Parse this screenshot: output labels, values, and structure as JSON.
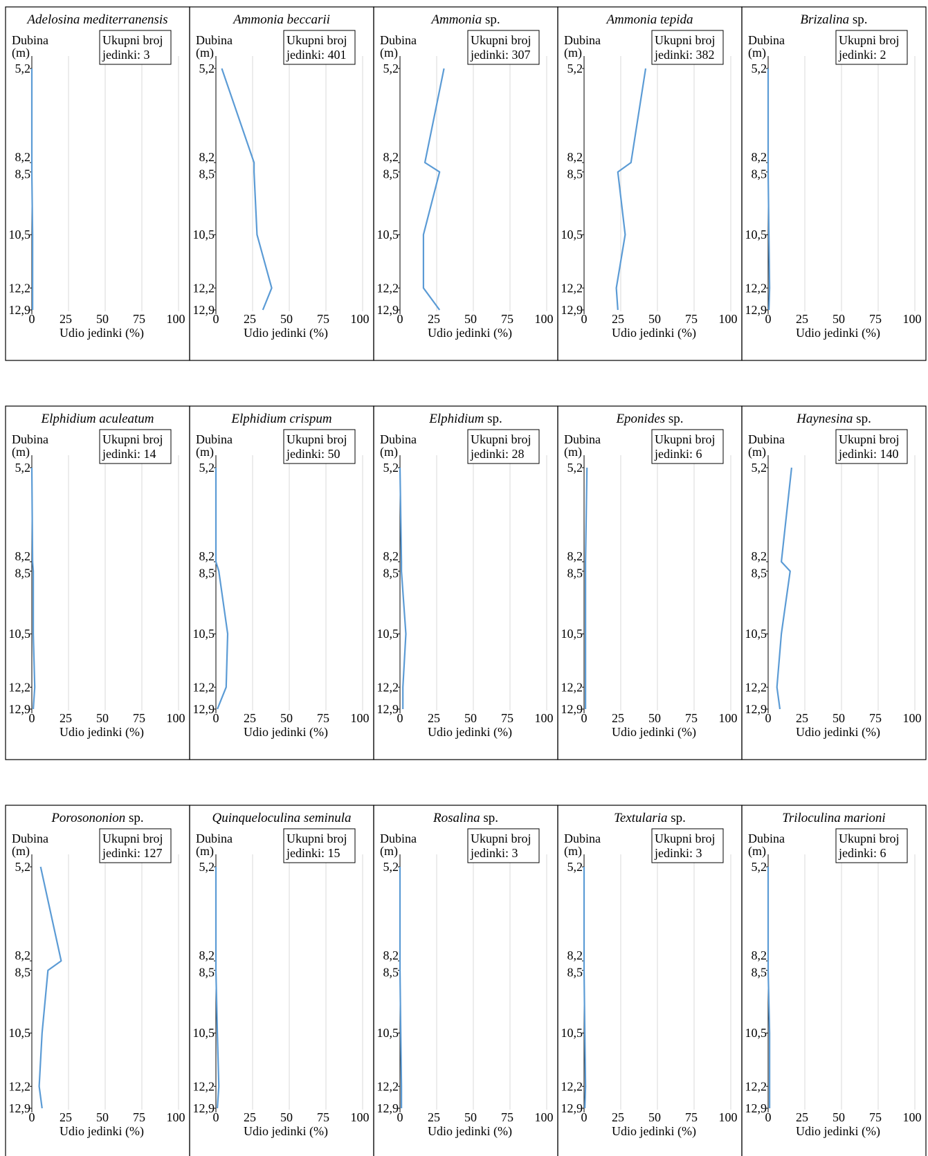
{
  "figure": {
    "y_axis_label": "Dubina",
    "y_axis_unit": "(m)",
    "x_axis_label": "Udio jedinki (%)",
    "count_label_line1": "Ukupni broj",
    "count_label_prefix": "jedinki:",
    "line_color": "#5b9bd5",
    "grid_color": "#d9d9d9",
    "frame_color": "#000000"
  },
  "chart_data": [
    {
      "type": "line",
      "title": [
        {
          "text": "Adelosina mediterranensis",
          "italic": true
        }
      ],
      "total": 3,
      "x": [
        0,
        0,
        0,
        0.5,
        0.5,
        0.5
      ],
      "y": [
        5.2,
        8.2,
        8.5,
        10.5,
        12.2,
        12.9
      ]
    },
    {
      "type": "line",
      "title": [
        {
          "text": "Ammonia beccarii",
          "italic": true
        }
      ],
      "total": 401,
      "x": [
        4,
        26,
        26,
        28,
        38,
        32
      ],
      "y": [
        5.2,
        8.2,
        8.5,
        10.5,
        12.2,
        12.9
      ]
    },
    {
      "type": "line",
      "title": [
        {
          "text": "Ammonia",
          "italic": true
        },
        {
          "text": " sp.",
          "italic": false
        }
      ],
      "total": 307,
      "x": [
        30,
        17,
        27,
        16,
        16,
        27
      ],
      "y": [
        5.2,
        8.2,
        8.5,
        10.5,
        12.2,
        12.9
      ]
    },
    {
      "type": "line",
      "title": [
        {
          "text": "Ammonia tepida",
          "italic": true
        }
      ],
      "total": 382,
      "x": [
        42,
        32,
        23,
        28,
        22,
        23
      ],
      "y": [
        5.2,
        8.2,
        8.5,
        10.5,
        12.2,
        12.9
      ]
    },
    {
      "type": "line",
      "title": [
        {
          "text": "Brizalina",
          "italic": true
        },
        {
          "text": " sp.",
          "italic": false
        }
      ],
      "total": 2,
      "x": [
        0,
        0,
        0,
        0.5,
        1,
        0.5
      ],
      "y": [
        5.2,
        8.2,
        8.5,
        10.5,
        12.2,
        12.9
      ]
    },
    {
      "type": "line",
      "title": [
        {
          "text": "Elphidium aculeatum",
          "italic": true
        }
      ],
      "total": 14,
      "x": [
        0,
        0.5,
        1,
        1,
        2,
        1
      ],
      "y": [
        5.2,
        8.2,
        8.5,
        10.5,
        12.2,
        12.9
      ]
    },
    {
      "type": "line",
      "title": [
        {
          "text": "Elphidium crispum",
          "italic": true
        }
      ],
      "total": 50,
      "x": [
        0,
        0,
        2,
        8,
        7,
        1
      ],
      "y": [
        5.2,
        8.2,
        8.5,
        10.5,
        12.2,
        12.9
      ]
    },
    {
      "type": "line",
      "title": [
        {
          "text": "Elphidium",
          "italic": true
        },
        {
          "text": " sp.",
          "italic": false
        }
      ],
      "total": 28,
      "x": [
        0,
        1,
        1,
        4,
        2,
        2
      ],
      "y": [
        5.2,
        8.2,
        8.5,
        10.5,
        12.2,
        12.9
      ]
    },
    {
      "type": "line",
      "title": [
        {
          "text": "Eponides",
          "italic": true
        },
        {
          "text": " sp.",
          "italic": false
        }
      ],
      "total": 6,
      "x": [
        2,
        1,
        1,
        1,
        1,
        1
      ],
      "y": [
        5.2,
        8.2,
        8.5,
        10.5,
        12.2,
        12.9
      ]
    },
    {
      "type": "line",
      "title": [
        {
          "text": "Haynesina",
          "italic": true
        },
        {
          "text": " sp.",
          "italic": false
        }
      ],
      "total": 140,
      "x": [
        16,
        9,
        15,
        9,
        6,
        8
      ],
      "y": [
        5.2,
        8.2,
        8.5,
        10.5,
        12.2,
        12.9
      ]
    },
    {
      "type": "line",
      "title": [
        {
          "text": "Porosononion",
          "italic": true
        },
        {
          "text": " sp.",
          "italic": false
        }
      ],
      "total": 127,
      "x": [
        6,
        20,
        11,
        7,
        5,
        7
      ],
      "y": [
        5.2,
        8.2,
        8.5,
        10.5,
        12.2,
        12.9
      ]
    },
    {
      "type": "line",
      "title": [
        {
          "text": "Quinqueloculina seminula",
          "italic": true
        }
      ],
      "total": 15,
      "x": [
        0,
        0,
        0,
        1,
        2,
        1
      ],
      "y": [
        5.2,
        8.2,
        8.5,
        10.5,
        12.2,
        12.9
      ]
    },
    {
      "type": "line",
      "title": [
        {
          "text": "Rosalina",
          "italic": true
        },
        {
          "text": " sp.",
          "italic": false
        }
      ],
      "total": 3,
      "x": [
        0,
        0,
        0,
        0.5,
        1,
        1
      ],
      "y": [
        5.2,
        8.2,
        8.5,
        10.5,
        12.2,
        12.9
      ]
    },
    {
      "type": "line",
      "title": [
        {
          "text": "Textularia",
          "italic": true
        },
        {
          "text": " sp.",
          "italic": false
        }
      ],
      "total": 3,
      "x": [
        0,
        0,
        0,
        0.5,
        1,
        0.5
      ],
      "y": [
        5.2,
        8.2,
        8.5,
        10.5,
        12.2,
        12.9
      ]
    },
    {
      "type": "line",
      "title": [
        {
          "text": "Triloculina marioni",
          "italic": true
        }
      ],
      "total": 6,
      "x": [
        0,
        0,
        0,
        1,
        1,
        1
      ],
      "y": [
        5.2,
        8.2,
        8.5,
        10.5,
        12.2,
        12.9
      ]
    }
  ],
  "axes": {
    "x_ticks": [
      0,
      25,
      50,
      75,
      100
    ],
    "xlim": [
      0,
      100
    ],
    "y_ticks": [
      {
        "value": 5.2,
        "label": "5,2"
      },
      {
        "value": 8.2,
        "label": "8,2"
      },
      {
        "value": 8.5,
        "label": "8,5"
      },
      {
        "value": 10.5,
        "label": "10,5"
      },
      {
        "value": 12.2,
        "label": "12,2"
      },
      {
        "value": 12.9,
        "label": "12,9"
      }
    ],
    "ylim": [
      5.2,
      12.9
    ],
    "grid": true
  }
}
